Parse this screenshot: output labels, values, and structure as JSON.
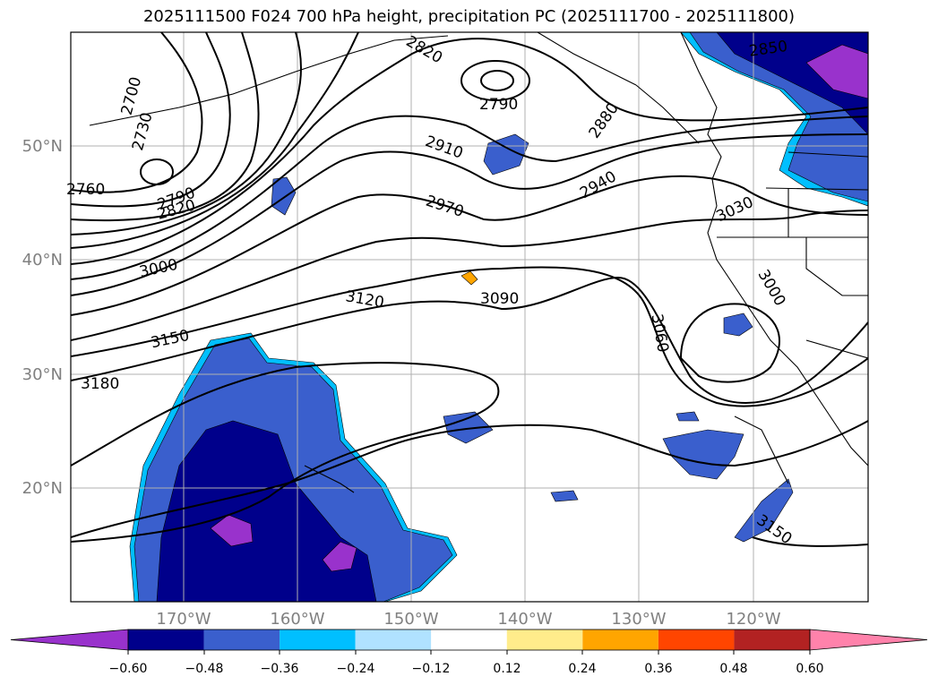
{
  "title": "2025111500 F024 700 hPa height, precipitation PC (2025111700 - 2025111800)",
  "lat_ticks": [
    "50°N",
    "40°N",
    "30°N",
    "20°N"
  ],
  "lon_ticks": [
    "170°W",
    "160°W",
    "150°W",
    "140°W",
    "130°W",
    "120°W"
  ],
  "contour_labels": [
    "2700",
    "2730",
    "2760",
    "2790",
    "2820",
    "2820",
    "2790",
    "2850",
    "2880",
    "2910",
    "2940",
    "2970",
    "3000",
    "3030",
    "3000",
    "3060",
    "3090",
    "3120",
    "3150",
    "3180",
    "3150"
  ],
  "colorbar": {
    "ticks": [
      "−0.60",
      "−0.48",
      "−0.36",
      "−0.24",
      "−0.12",
      "0.12",
      "0.24",
      "0.36",
      "0.48",
      "0.60"
    ],
    "colors": [
      "#9932cc",
      "#00008b",
      "#3a5fcd",
      "#00bfff",
      "#b0e2ff",
      "#ffffff",
      "#ffec8b",
      "#ffa500",
      "#ff4500",
      "#b22222",
      "#ff82ab"
    ]
  }
}
